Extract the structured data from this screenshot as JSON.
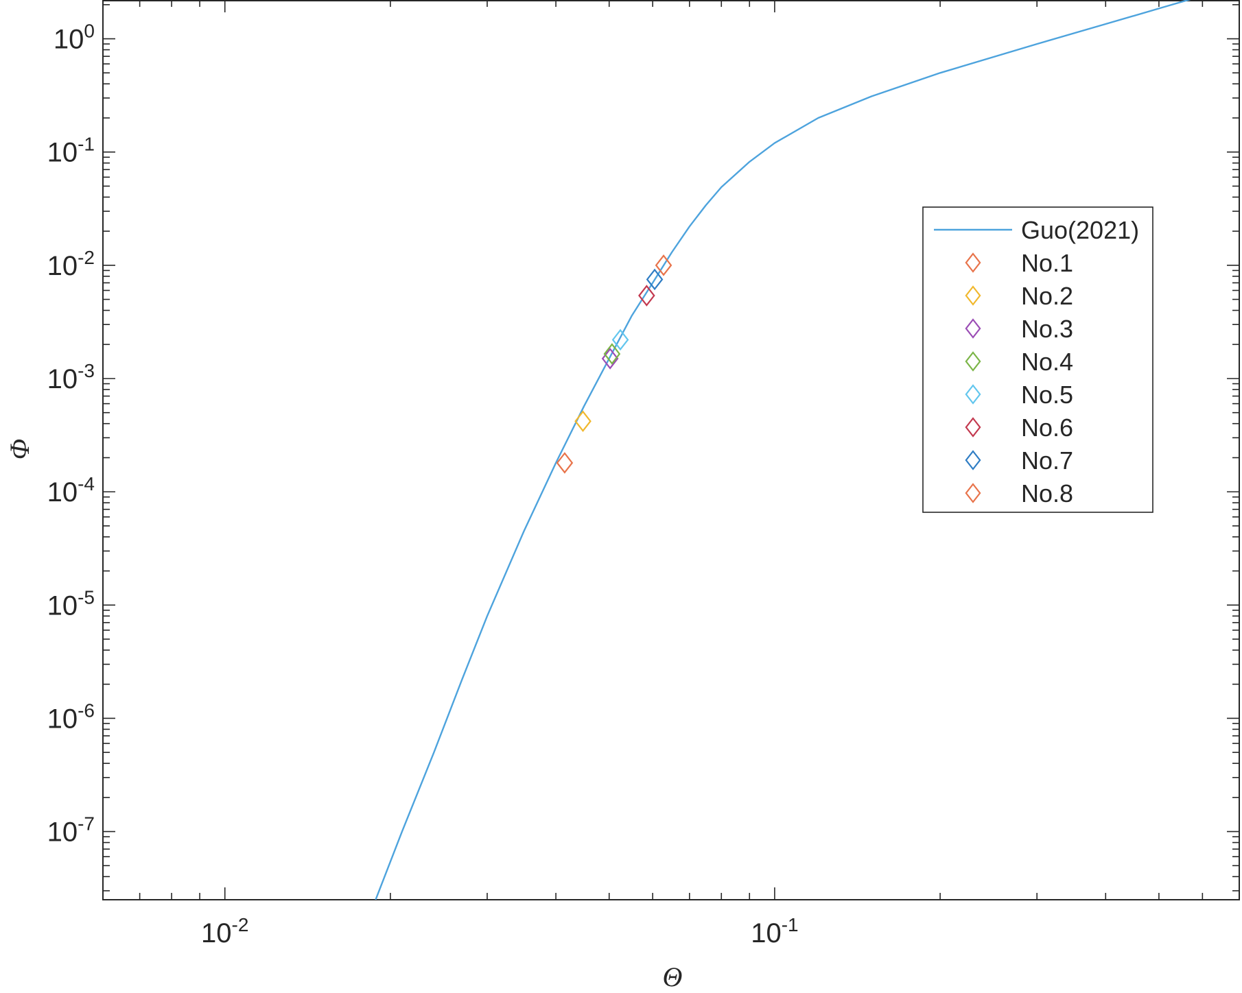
{
  "chart_data": {
    "type": "line",
    "xlabel": "Θ",
    "ylabel": "Φ",
    "xscale": "log",
    "yscale": "log",
    "xlim": [
      0.006,
      0.7
    ],
    "ylim": [
      2.5e-08,
      2.2
    ],
    "grid": false,
    "legend_position": "right",
    "x_ticks": [
      {
        "base": "10",
        "exp": "-2",
        "value": 0.01
      },
      {
        "base": "10",
        "exp": "-1",
        "value": 0.1
      }
    ],
    "y_ticks": [
      {
        "base": "10",
        "exp": "0",
        "value": 1
      },
      {
        "base": "10",
        "exp": "-1",
        "value": 0.1
      },
      {
        "base": "10",
        "exp": "-2",
        "value": 0.01
      },
      {
        "base": "10",
        "exp": "-3",
        "value": 0.001
      },
      {
        "base": "10",
        "exp": "-4",
        "value": 0.0001
      },
      {
        "base": "10",
        "exp": "-5",
        "value": 1e-05
      },
      {
        "base": "10",
        "exp": "-6",
        "value": 1e-06
      },
      {
        "base": "10",
        "exp": "-7",
        "value": 1e-07
      }
    ],
    "series": [
      {
        "name": "Guo(2021)",
        "kind": "line",
        "color": "#4DA3DD",
        "x": [
          0.0188,
          0.021,
          0.024,
          0.027,
          0.03,
          0.035,
          0.04,
          0.045,
          0.05,
          0.055,
          0.06,
          0.065,
          0.07,
          0.075,
          0.08,
          0.09,
          0.1,
          0.12,
          0.15,
          0.2,
          0.3,
          0.4,
          0.5,
          0.6
        ],
        "y": [
          2.5e-08,
          1e-07,
          5e-07,
          2.2e-06,
          8e-06,
          4.5e-05,
          0.00018,
          0.00057,
          0.0015,
          0.0036,
          0.007,
          0.013,
          0.022,
          0.034,
          0.049,
          0.082,
          0.12,
          0.2,
          0.31,
          0.5,
          0.9,
          1.35,
          1.85,
          2.4
        ]
      },
      {
        "name": "No.1",
        "kind": "marker",
        "color": "#E8734A",
        "x": [
          0.0415
        ],
        "y": [
          0.00018
        ]
      },
      {
        "name": "No.2",
        "kind": "marker",
        "color": "#F1B82D",
        "x": [
          0.0448
        ],
        "y": [
          0.00042
        ]
      },
      {
        "name": "No.3",
        "kind": "marker",
        "color": "#9B4DB5",
        "x": [
          0.0502
        ],
        "y": [
          0.0015
        ]
      },
      {
        "name": "No.4",
        "kind": "marker",
        "color": "#7BB547",
        "x": [
          0.0506
        ],
        "y": [
          0.00165
        ]
      },
      {
        "name": "No.5",
        "kind": "marker",
        "color": "#62C6EE",
        "x": [
          0.0524
        ],
        "y": [
          0.0022
        ]
      },
      {
        "name": "No.6",
        "kind": "marker",
        "color": "#C3394F",
        "x": [
          0.0585
        ],
        "y": [
          0.0054
        ]
      },
      {
        "name": "No.7",
        "kind": "marker",
        "color": "#2F7DC4",
        "x": [
          0.0605
        ],
        "y": [
          0.0075
        ]
      },
      {
        "name": "No.8",
        "kind": "marker",
        "color": "#E8734A",
        "x": [
          0.0628
        ],
        "y": [
          0.01
        ]
      }
    ]
  }
}
